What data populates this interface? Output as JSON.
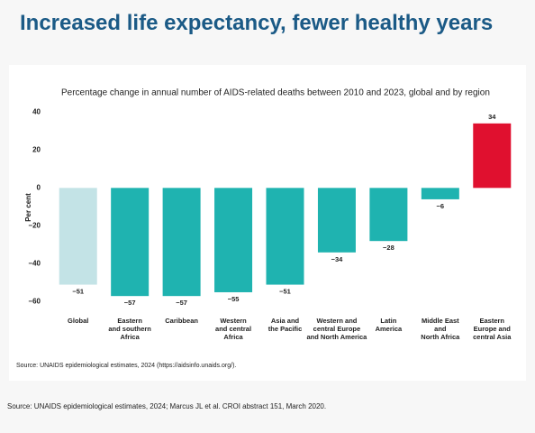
{
  "heading": "Increased life expectancy, fewer healthy years",
  "chart_data": {
    "type": "bar",
    "title": "Percentage change in annual number of AIDS-related deaths between 2010 and 2023, global and by region",
    "y_label": "Per cent",
    "categories": [
      "Global",
      "Eastern\nand southern\nAfrica",
      "Caribbean",
      "Western\nand central\nAfrica",
      "Asia and\nthe Pacific",
      "Western and\ncentral Europe\nand North America",
      "Latin\nAmerica",
      "Middle East\nand\nNorth Africa",
      "Eastern\nEurope and\ncentral Asia"
    ],
    "values": [
      -51,
      -57,
      -57,
      -55,
      -51,
      -34,
      -28,
      -6,
      34
    ],
    "value_labels": [
      "−51",
      "−57",
      "−57",
      "−55",
      "−51",
      "−34",
      "−28",
      "−6",
      "34"
    ],
    "colors": [
      "#c3e3e6",
      "#1fb3b0",
      "#1fb3b0",
      "#1fb3b0",
      "#1fb3b0",
      "#1fb3b0",
      "#1fb3b0",
      "#1fb3b0",
      "#e0102f"
    ],
    "ylim": [
      -65,
      42
    ],
    "yticks": [
      {
        "value": -60,
        "label": "−60"
      },
      {
        "value": -40,
        "label": "−40"
      },
      {
        "value": -20,
        "label": "−20"
      },
      0,
      20,
      40
    ],
    "source": "Source: UNAIDS epidemiological estimates, 2024 (https://aidsinfo.unaids.org/)."
  },
  "footnote": "Source: UNAIDS epidemiological estimates, 2024; Marcus JL et al. CROI abstract 151, March 2020."
}
